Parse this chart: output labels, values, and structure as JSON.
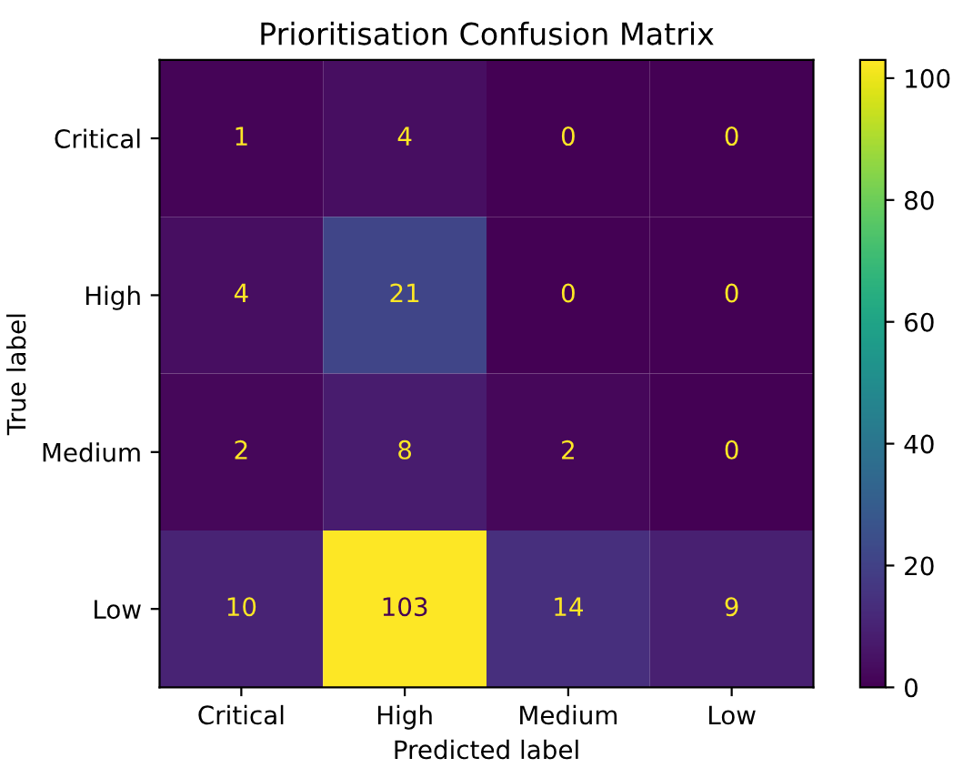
{
  "chart_data": {
    "type": "heatmap",
    "title": "Prioritisation Confusion Matrix",
    "xlabel": "Predicted label",
    "ylabel": "True label",
    "clim": [
      0,
      103
    ],
    "cticks": [
      0,
      20,
      40,
      60,
      80,
      100
    ],
    "categories": [
      "Critical",
      "High",
      "Medium",
      "Low"
    ],
    "y_categories": [
      "Critical",
      "High",
      "Medium",
      "Low"
    ],
    "cells": [
      [
        1,
        4,
        0,
        0
      ],
      [
        4,
        21,
        0,
        0
      ],
      [
        2,
        8,
        2,
        0
      ],
      [
        10,
        103,
        14,
        9
      ]
    ],
    "data_labels": true
  }
}
